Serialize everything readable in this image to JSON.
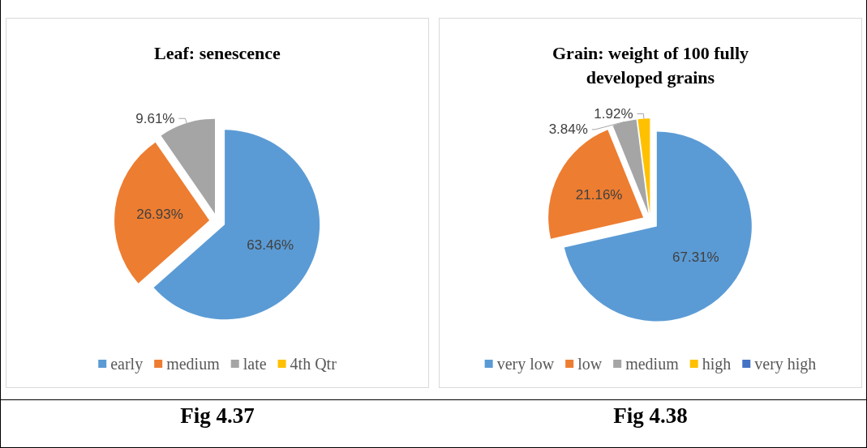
{
  "chart_data": [
    {
      "type": "pie",
      "title": "Leaf: senescence",
      "categories": [
        "early",
        "medium",
        "late",
        "4th Qtr"
      ],
      "values": [
        63.46,
        26.93,
        9.61,
        0
      ],
      "value_labels": [
        "63.46%",
        "26.93%",
        "9.61%",
        null
      ],
      "colors": [
        "#5b9bd5",
        "#ed7d31",
        "#a5a5a5",
        "#ffc000"
      ],
      "legend": "bottom",
      "annotations": [
        "Fig 4.37"
      ]
    },
    {
      "type": "pie",
      "title": "Grain: weight of 100 fully\ndeveloped grains",
      "categories": [
        "very low",
        "low",
        "medium",
        "high",
        "very high"
      ],
      "values": [
        67.31,
        21.16,
        3.84,
        1.92,
        0
      ],
      "value_labels": [
        "67.31%",
        "21.16%",
        "3.84%",
        "1.92%",
        null
      ],
      "colors": [
        "#5b9bd5",
        "#ed7d31",
        "#a5a5a5",
        "#ffc000",
        "#4472c4"
      ],
      "legend": "bottom",
      "annotations": [
        "Fig 4.38"
      ]
    }
  ]
}
